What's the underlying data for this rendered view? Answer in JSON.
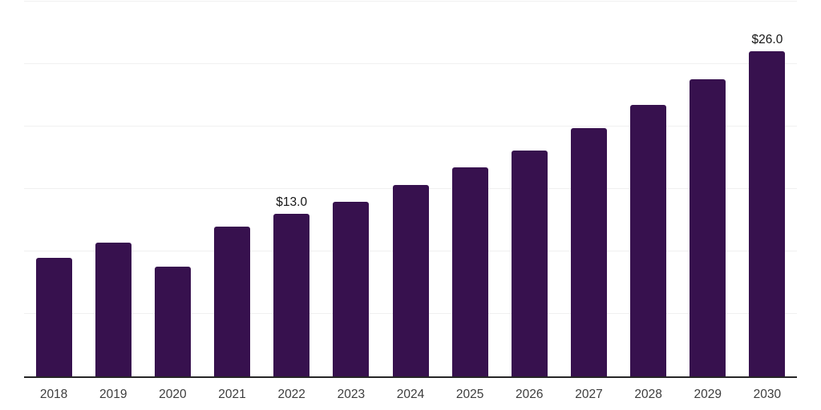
{
  "chart_data": {
    "type": "bar",
    "title": "",
    "xlabel": "",
    "ylabel": "",
    "categories": [
      "2018",
      "2019",
      "2020",
      "2021",
      "2022",
      "2023",
      "2024",
      "2025",
      "2026",
      "2027",
      "2028",
      "2029",
      "2030"
    ],
    "values": [
      9.5,
      10.7,
      8.8,
      12.0,
      13.0,
      14.0,
      15.3,
      16.7,
      18.1,
      19.9,
      21.7,
      23.8,
      26.0
    ],
    "annotations": [
      {
        "category": "2022",
        "text": "$13.0"
      },
      {
        "category": "2030",
        "text": "$26.0"
      }
    ],
    "ylim": [
      0,
      30
    ],
    "grid_step": 5,
    "grid": "horizontal-only",
    "legend_position": "none",
    "y_tick_labels_visible": false,
    "bar_color": "#37114E",
    "grid_color": "#f0f0f0",
    "axis_line_color": "#262626",
    "tick_label_color": "#3d3d3d",
    "value_label_color": "#161616",
    "background_color": "#ffffff"
  }
}
